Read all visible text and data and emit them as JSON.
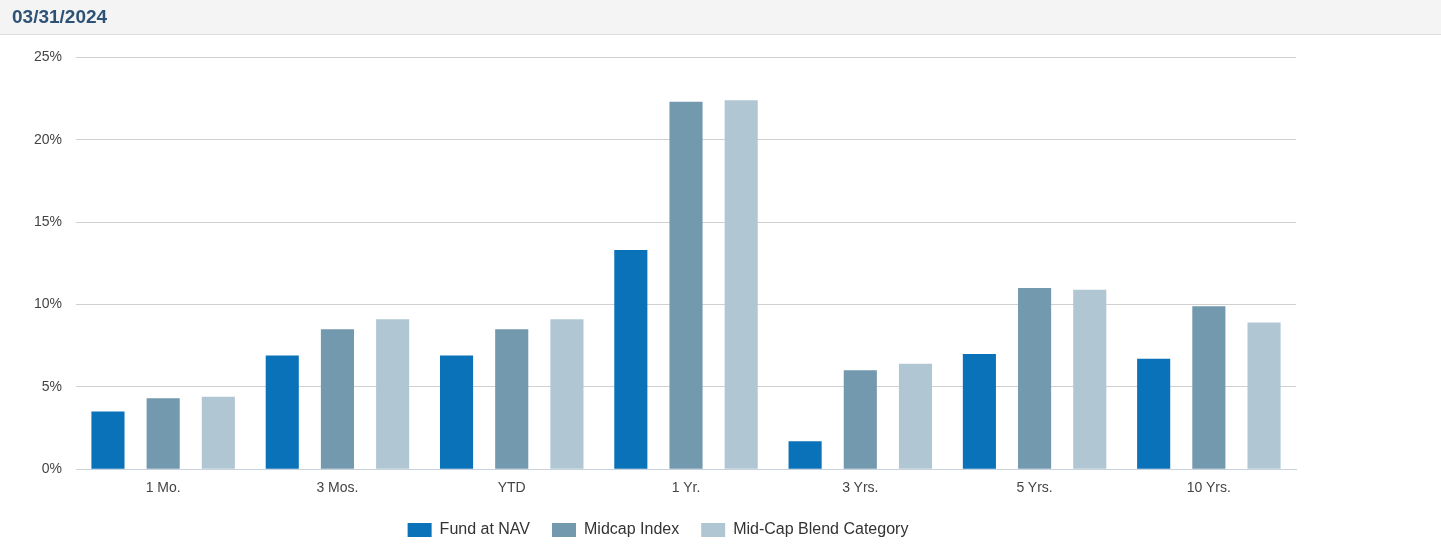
{
  "chart_data": {
    "type": "bar",
    "title": "03/31/2024",
    "categories": [
      "1 Mo.",
      "3 Mos.",
      "YTD",
      "1 Yr.",
      "3 Yrs.",
      "5 Yrs.",
      "10 Yrs."
    ],
    "series": [
      {
        "name": "Fund at NAV",
        "color": "#0a72b8",
        "values": [
          3.5,
          6.9,
          6.9,
          13.3,
          1.7,
          7.0,
          6.7
        ]
      },
      {
        "name": "Midcap Index",
        "color": "#7399ae",
        "values": [
          4.3,
          8.5,
          8.5,
          22.3,
          6.0,
          11.0,
          9.9
        ]
      },
      {
        "name": "Mid-Cap Blend Category",
        "color": "#b0c7d3",
        "values": [
          4.4,
          9.1,
          9.1,
          22.4,
          6.4,
          10.9,
          8.9
        ]
      }
    ],
    "ylim": [
      0,
      25
    ],
    "yticks": [
      {
        "value": 0,
        "label": "0%"
      },
      {
        "value": 5,
        "label": "5%"
      },
      {
        "value": 10,
        "label": "10%"
      },
      {
        "value": 15,
        "label": "15%"
      },
      {
        "value": 20,
        "label": "20%"
      },
      {
        "value": 25,
        "label": "25%"
      }
    ],
    "grid": "y",
    "legend": "bottom"
  }
}
